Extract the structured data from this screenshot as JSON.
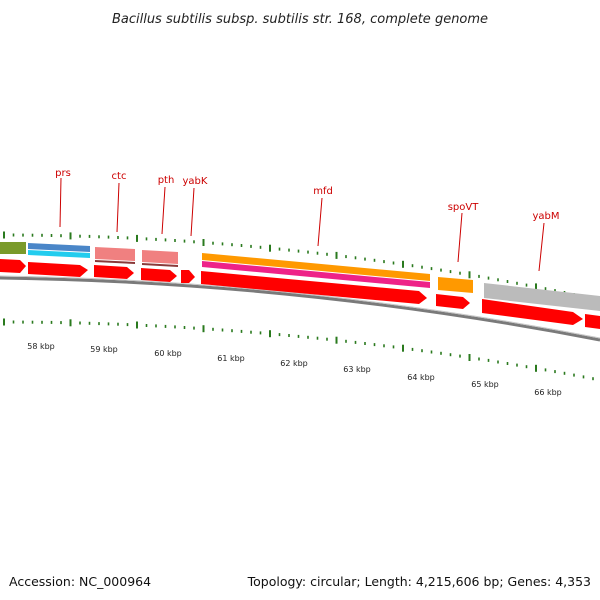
{
  "header": {
    "title": "Bacillus subtilis subsp. subtilis str. 168, complete genome"
  },
  "footer": {
    "accession": "Accession: NC_000964",
    "summary": "Topology: circular; Length: 4,215,606 bp; Genes: 4,353"
  },
  "gene_labels": [
    {
      "id": "prs",
      "label": "prs"
    },
    {
      "id": "ctc",
      "label": "ctc"
    },
    {
      "id": "pth",
      "label": "pth"
    },
    {
      "id": "yabK",
      "label": "yabK"
    },
    {
      "id": "mfd",
      "label": "mfd"
    },
    {
      "id": "spoVT",
      "label": "spoVT"
    },
    {
      "id": "yabM",
      "label": "yabM"
    }
  ],
  "kbp_labels": [
    "58 kbp",
    "59 kbp",
    "60 kbp",
    "61 kbp",
    "62 kbp",
    "63 kbp",
    "64 kbp",
    "65 kbp",
    "66 kbp"
  ],
  "colors": {
    "cds": "#ff0000",
    "backbone": "#808080",
    "tick_major": "#2a7a1e",
    "label_red": "#cc0000",
    "orange": "#ff9900",
    "magenta": "#ee2288",
    "salmon": "#f08080",
    "blue": "#4a86c8",
    "cyan": "#22ccee",
    "olive": "#7a9a2a",
    "gray_block": "#bbbbbb"
  }
}
